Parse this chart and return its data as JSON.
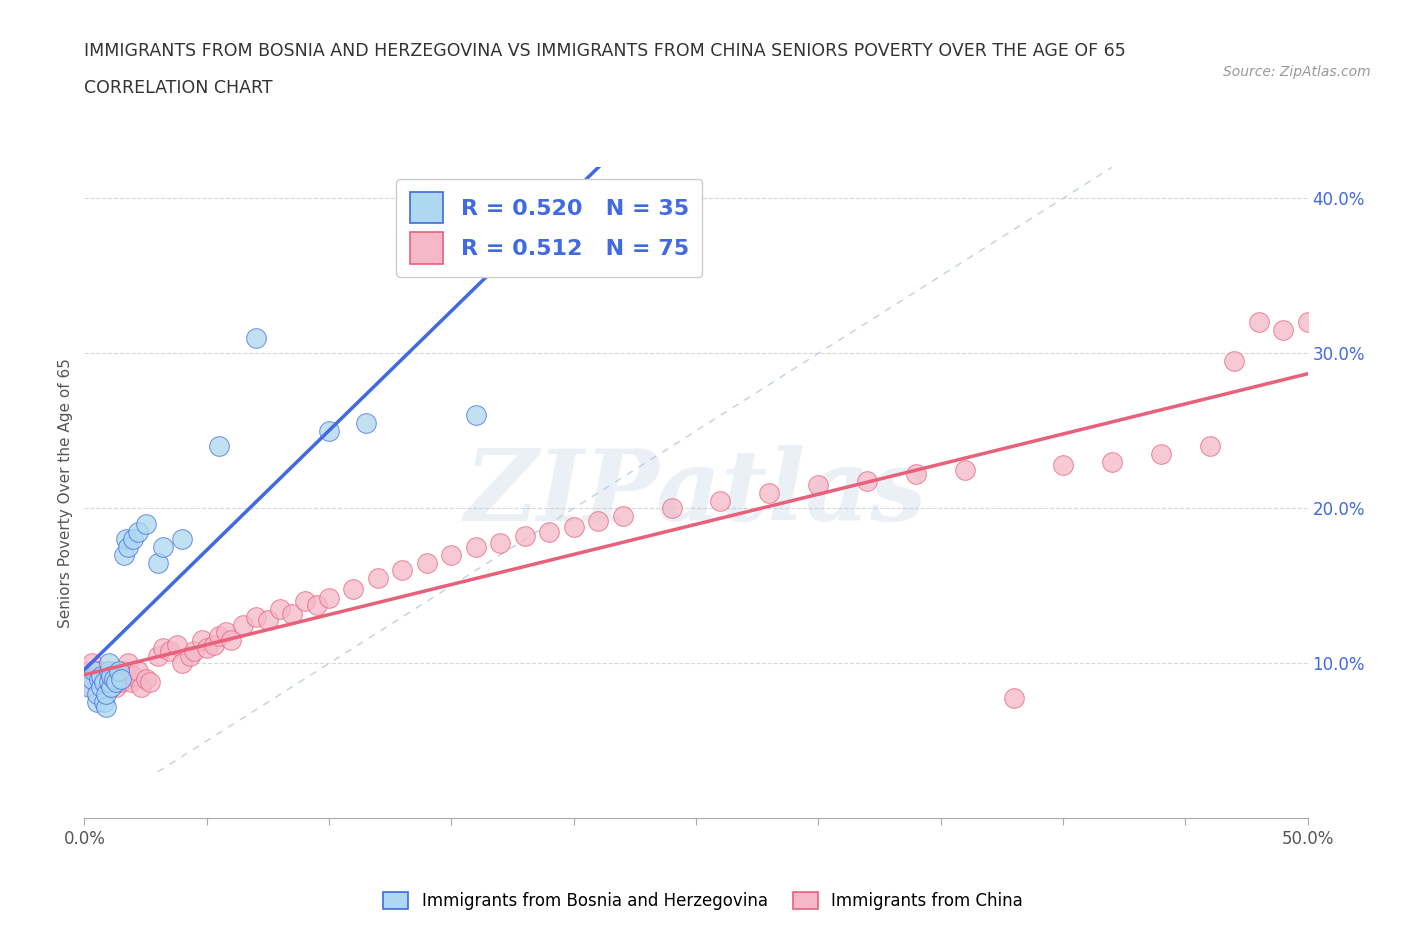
{
  "title_line1": "IMMIGRANTS FROM BOSNIA AND HERZEGOVINA VS IMMIGRANTS FROM CHINA SENIORS POVERTY OVER THE AGE OF 65",
  "title_line2": "CORRELATION CHART",
  "source_text": "Source: ZipAtlas.com",
  "ylabel": "Seniors Poverty Over the Age of 65",
  "xlim": [
    0.0,
    0.5
  ],
  "ylim": [
    0.0,
    0.42
  ],
  "x_ticks": [
    0.0,
    0.05,
    0.1,
    0.15,
    0.2,
    0.25,
    0.3,
    0.35,
    0.4,
    0.45,
    0.5
  ],
  "x_tick_labels": [
    "0.0%",
    "",
    "",
    "",
    "",
    "",
    "",
    "",
    "",
    "",
    "50.0%"
  ],
  "y_ticks": [
    0.1,
    0.2,
    0.3,
    0.4
  ],
  "y_tick_labels": [
    "10.0%",
    "20.0%",
    "30.0%",
    "40.0%"
  ],
  "bosnia_color": "#ADD8F0",
  "china_color": "#F4B8C8",
  "bosnia_line_color": "#4169E1",
  "china_line_color": "#E8607A",
  "diagonal_color": "#B0C4DE",
  "r_bosnia": 0.52,
  "n_bosnia": 35,
  "r_china": 0.512,
  "n_china": 75,
  "legend_label_bosnia": "Immigrants from Bosnia and Herzegovina",
  "legend_label_china": "Immigrants from China",
  "watermark_text": "ZIPatlas",
  "bosnia_x": [
    0.002,
    0.003,
    0.004,
    0.005,
    0.005,
    0.006,
    0.007,
    0.007,
    0.008,
    0.008,
    0.009,
    0.009,
    0.01,
    0.01,
    0.01,
    0.011,
    0.011,
    0.012,
    0.013,
    0.014,
    0.015,
    0.016,
    0.017,
    0.018,
    0.02,
    0.022,
    0.025,
    0.03,
    0.032,
    0.04,
    0.055,
    0.07,
    0.1,
    0.115,
    0.16
  ],
  "bosnia_y": [
    0.085,
    0.09,
    0.095,
    0.075,
    0.08,
    0.09,
    0.085,
    0.092,
    0.075,
    0.088,
    0.072,
    0.08,
    0.088,
    0.095,
    0.1,
    0.085,
    0.092,
    0.09,
    0.088,
    0.095,
    0.09,
    0.17,
    0.18,
    0.175,
    0.18,
    0.185,
    0.19,
    0.165,
    0.175,
    0.18,
    0.24,
    0.31,
    0.25,
    0.255,
    0.26
  ],
  "china_x": [
    0.001,
    0.002,
    0.003,
    0.003,
    0.004,
    0.005,
    0.006,
    0.007,
    0.008,
    0.009,
    0.01,
    0.01,
    0.011,
    0.012,
    0.013,
    0.014,
    0.015,
    0.016,
    0.017,
    0.018,
    0.019,
    0.02,
    0.022,
    0.023,
    0.025,
    0.027,
    0.03,
    0.032,
    0.035,
    0.038,
    0.04,
    0.043,
    0.045,
    0.048,
    0.05,
    0.053,
    0.055,
    0.058,
    0.06,
    0.065,
    0.07,
    0.075,
    0.08,
    0.085,
    0.09,
    0.095,
    0.1,
    0.11,
    0.12,
    0.13,
    0.14,
    0.15,
    0.16,
    0.17,
    0.18,
    0.19,
    0.2,
    0.21,
    0.22,
    0.24,
    0.26,
    0.28,
    0.3,
    0.32,
    0.34,
    0.36,
    0.38,
    0.4,
    0.42,
    0.44,
    0.46,
    0.47,
    0.48,
    0.49,
    0.5
  ],
  "china_y": [
    0.09,
    0.095,
    0.085,
    0.1,
    0.092,
    0.088,
    0.095,
    0.08,
    0.09,
    0.085,
    0.092,
    0.095,
    0.088,
    0.09,
    0.085,
    0.092,
    0.088,
    0.095,
    0.09,
    0.1,
    0.088,
    0.092,
    0.095,
    0.085,
    0.09,
    0.088,
    0.105,
    0.11,
    0.108,
    0.112,
    0.1,
    0.105,
    0.108,
    0.115,
    0.11,
    0.112,
    0.118,
    0.12,
    0.115,
    0.125,
    0.13,
    0.128,
    0.135,
    0.132,
    0.14,
    0.138,
    0.142,
    0.148,
    0.155,
    0.16,
    0.165,
    0.17,
    0.175,
    0.178,
    0.182,
    0.185,
    0.188,
    0.192,
    0.195,
    0.2,
    0.205,
    0.21,
    0.215,
    0.218,
    0.222,
    0.225,
    0.078,
    0.228,
    0.23,
    0.235,
    0.24,
    0.295,
    0.32,
    0.315,
    0.32
  ],
  "background_color": "#ffffff",
  "grid_color": "#d8d8d8"
}
